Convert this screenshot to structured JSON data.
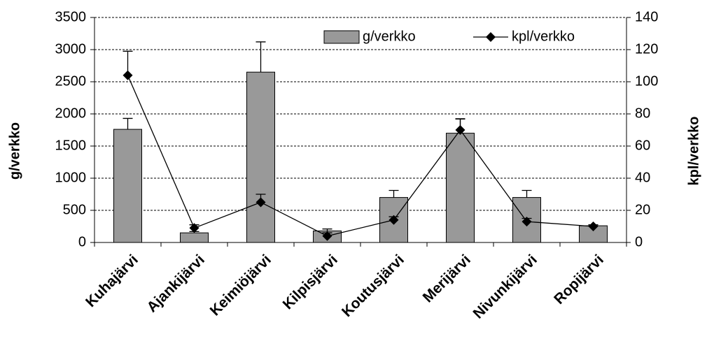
{
  "chart_data": {
    "type": "bar",
    "categories": [
      "Kuhajärvi",
      "Ajankijärvi",
      "Keimiöjärvi",
      "Kilpisjärvi",
      "Koutusjärvi",
      "Merijärvi",
      "Nivunkijärvi",
      "Ropijärvi"
    ],
    "series": [
      {
        "name": "g/verkko",
        "type": "bar",
        "color": "#999999",
        "values": [
          1760,
          150,
          2650,
          180,
          700,
          1700,
          700,
          260
        ],
        "errors": [
          170,
          20,
          470,
          30,
          110,
          220,
          110,
          0
        ]
      },
      {
        "name": "kpl/verkko",
        "type": "line",
        "axis": "y2",
        "color": "#000000",
        "values": [
          104,
          9,
          25,
          4,
          14,
          70,
          13,
          10
        ],
        "errors": [
          15,
          2,
          5,
          2,
          2,
          7,
          2,
          1
        ]
      }
    ],
    "ylabel": "g/verkko",
    "y2label": "kpl/verkko",
    "ylim": [
      0,
      3500
    ],
    "yticks": [
      0,
      500,
      1000,
      1500,
      2000,
      2500,
      3000,
      3500
    ],
    "y2lim": [
      0,
      140
    ],
    "y2ticks": [
      0,
      20,
      40,
      60,
      80,
      100,
      120,
      140
    ],
    "grid": true,
    "legend": "top"
  }
}
